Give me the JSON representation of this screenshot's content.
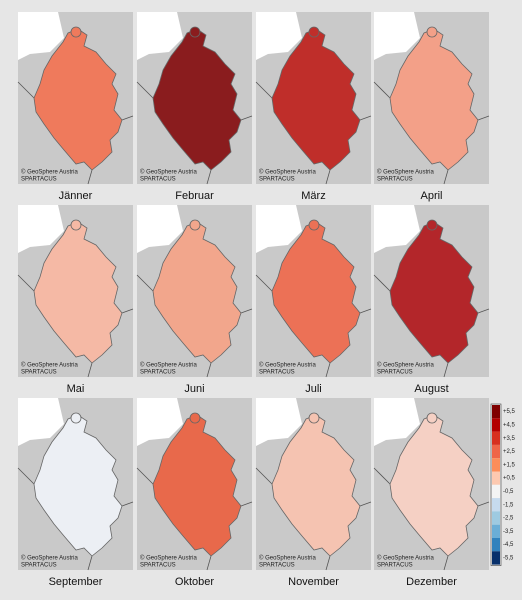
{
  "panels": [
    {
      "label": "Jänner",
      "credit": "© GeoSphere Austria",
      "source": "SPARTACUS",
      "color": "#ef7a5c"
    },
    {
      "label": "Februar",
      "credit": "© GeoSphere Austria",
      "source": "SPARTACUS",
      "color": "#8a1c1e"
    },
    {
      "label": "März",
      "credit": "© GeoSphere Austria",
      "source": "SPARTACUS",
      "color": "#bf2e2a"
    },
    {
      "label": "April",
      "credit": "© GeoSphere Austria",
      "source": "SPARTACUS",
      "color": "#f3a088"
    },
    {
      "label": "Mai",
      "credit": "© GeoSphere Austria",
      "source": "SPARTACUS",
      "color": "#f5b9a5"
    },
    {
      "label": "Juni",
      "credit": "© GeoSphere Austria",
      "source": "SPARTACUS",
      "color": "#f2a68c"
    },
    {
      "label": "Juli",
      "credit": "© GeoSphere Austria",
      "source": "SPARTACUS",
      "color": "#ec7156"
    },
    {
      "label": "August",
      "credit": "© GeoSphere Austria",
      "source": "SPARTACUS",
      "color": "#b3262a"
    },
    {
      "label": "September",
      "credit": "© GeoSphere Austria",
      "source": "SPARTACUS",
      "color": "#eceff4"
    },
    {
      "label": "Oktober",
      "credit": "© GeoSphere Austria",
      "source": "SPARTACUS",
      "color": "#e8694b"
    },
    {
      "label": "November",
      "credit": "© GeoSphere Austria",
      "source": "SPARTACUS",
      "color": "#f5c3b1"
    },
    {
      "label": "Dezember",
      "credit": "© GeoSphere Austria",
      "source": "SPARTACUS",
      "color": "#f5d0c4"
    }
  ],
  "legend": [
    {
      "label": "+5,5",
      "color": "#7f0000"
    },
    {
      "label": "+4,5",
      "color": "#b30000"
    },
    {
      "label": "+3,5",
      "color": "#d7301f"
    },
    {
      "label": "+2,5",
      "color": "#ef6548"
    },
    {
      "label": "+1,5",
      "color": "#fc8d59"
    },
    {
      "label": "+0,5",
      "color": "#fdc9b0"
    },
    {
      "label": "-0,5",
      "color": "#f4f4f4"
    },
    {
      "label": "-1,5",
      "color": "#c6dbef"
    },
    {
      "label": "-2,5",
      "color": "#9ecae1"
    },
    {
      "label": "-3,5",
      "color": "#6baed6"
    },
    {
      "label": "-4,5",
      "color": "#3182bd"
    },
    {
      "label": "-5,5",
      "color": "#08306b"
    }
  ]
}
